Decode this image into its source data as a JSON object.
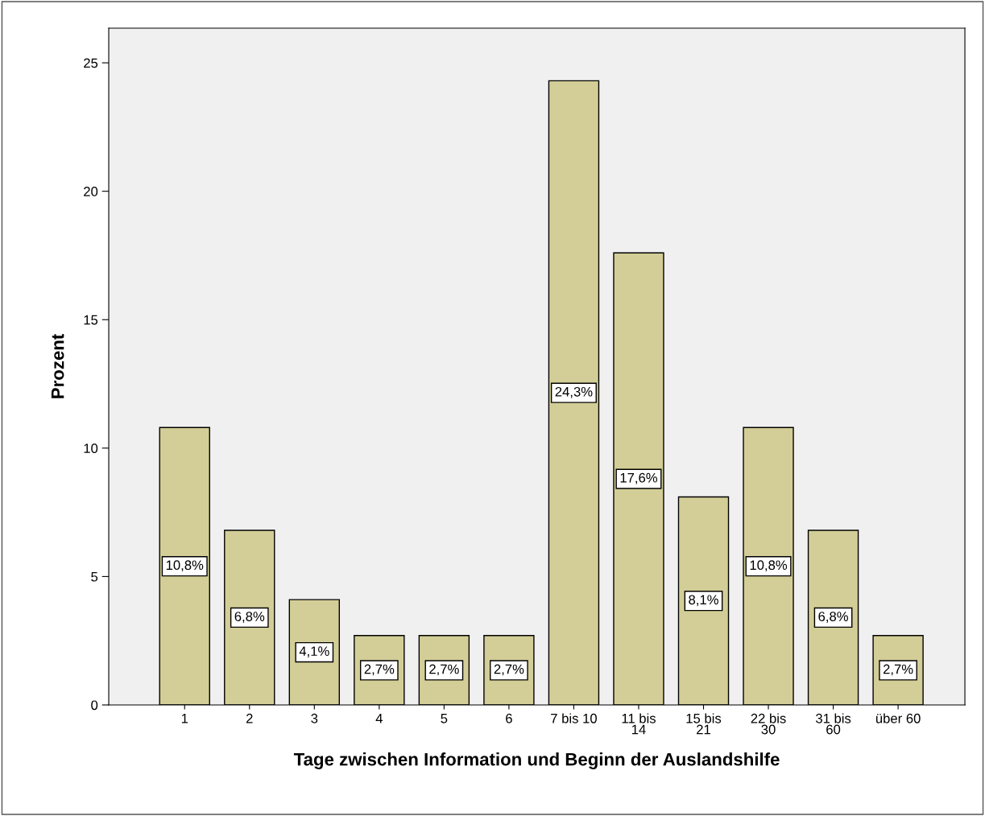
{
  "chart_data": {
    "type": "bar",
    "xlabel": "Tage zwischen Information und Beginn der Auslandshilfe",
    "ylabel": "Prozent",
    "categories": [
      "1",
      "2",
      "3",
      "4",
      "5",
      "6",
      "7 bis 10",
      "11 bis\n14",
      "15 bis\n21",
      "22 bis\n30",
      "31 bis\n60",
      "über 60"
    ],
    "values": [
      10.8,
      6.8,
      4.1,
      2.7,
      2.7,
      2.7,
      24.3,
      17.6,
      8.1,
      10.8,
      6.8,
      2.7
    ],
    "value_labels": [
      "10,8%",
      "6,8%",
      "4,1%",
      "2,7%",
      "2,7%",
      "2,7%",
      "24,3%",
      "17,6%",
      "8,1%",
      "10,8%",
      "6,8%",
      "2,7%"
    ],
    "color": "#d3ce97",
    "ylim": [
      0,
      26.35
    ],
    "yticks": [
      0,
      5,
      10,
      15,
      20,
      25
    ],
    "grid": false
  }
}
